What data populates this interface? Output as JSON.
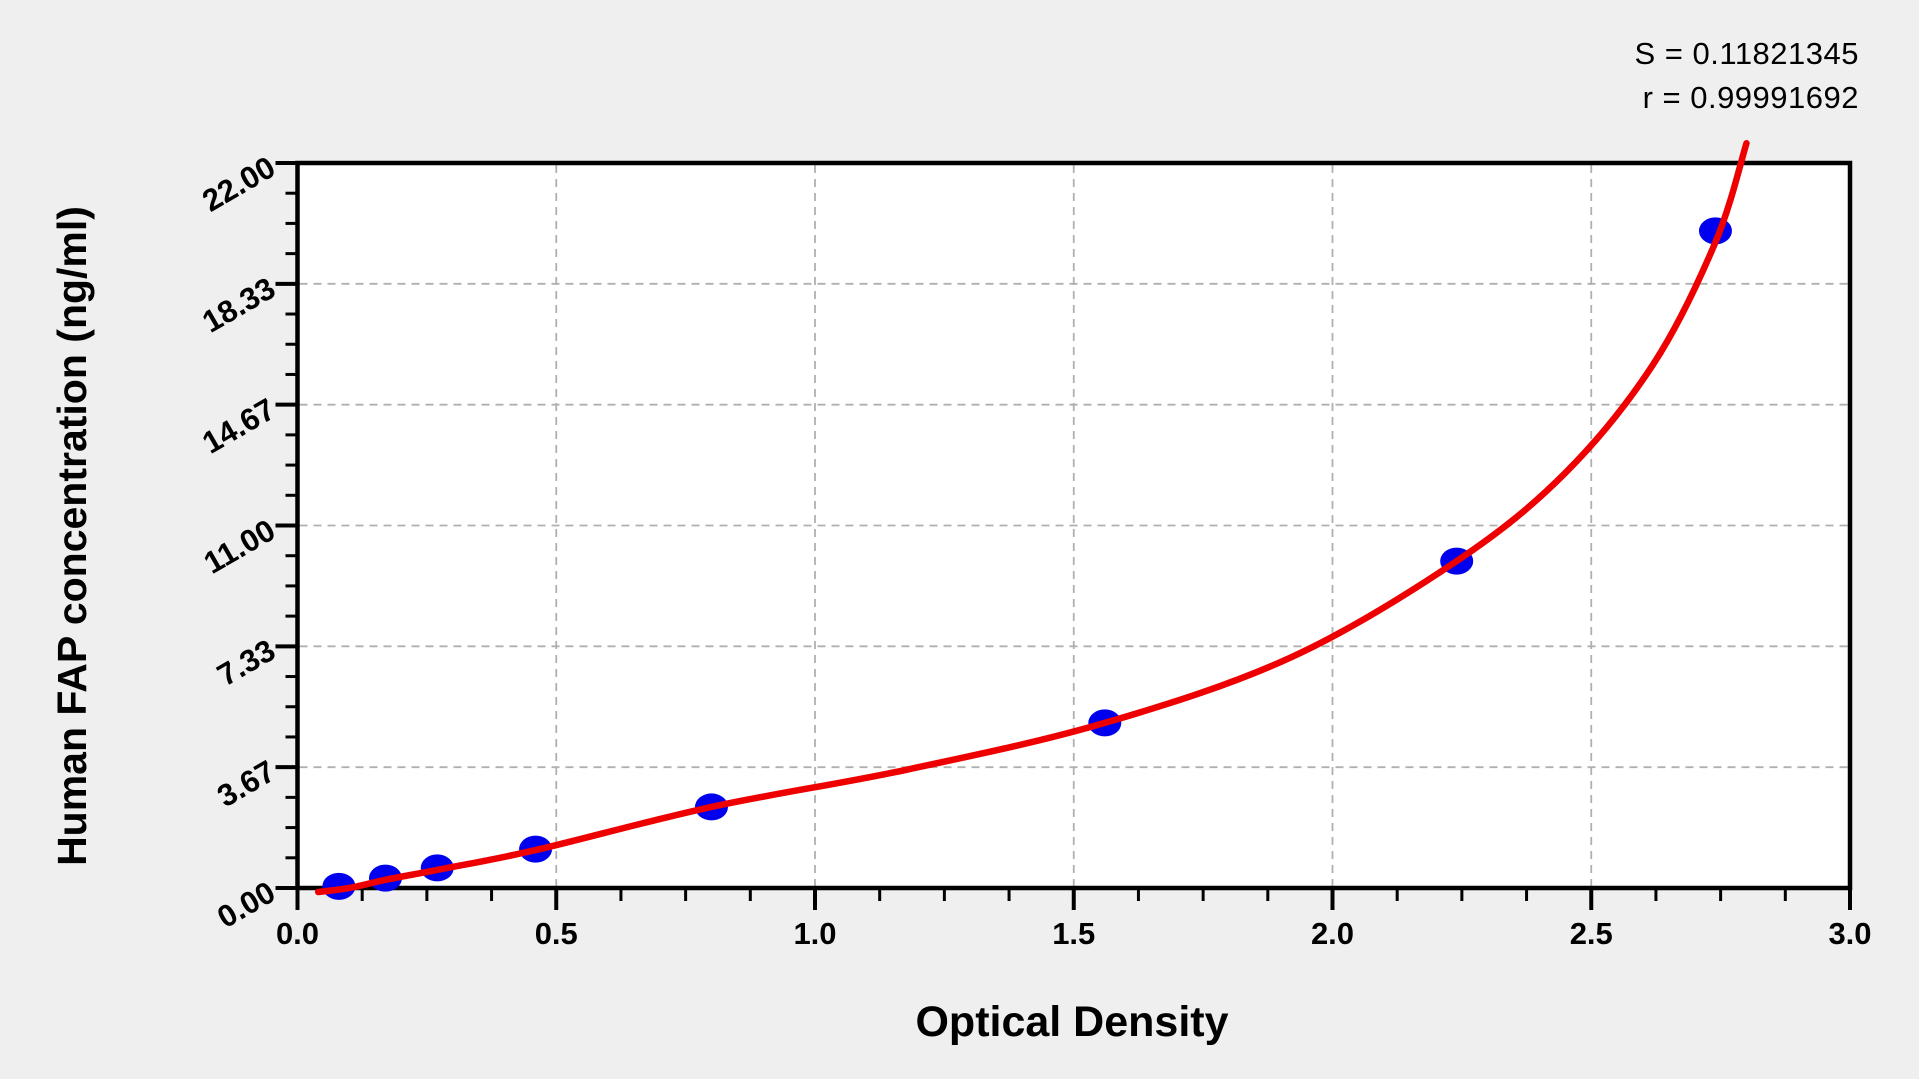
{
  "stats": {
    "s_text": "S = 0.11821345",
    "r_text": "r = 0.99991692",
    "s_value": 0.11821345,
    "r_value": 0.99991692
  },
  "chart_data": {
    "type": "scatter",
    "title": "",
    "xlabel": "Optical Density",
    "ylabel": "Human FAP concentration (ng/ml)",
    "xlim": [
      0,
      3.0
    ],
    "ylim": [
      0,
      22.0
    ],
    "x_major_ticks": [
      {
        "label": "0.0",
        "value": 0.0
      },
      {
        "label": "0.5",
        "value": 0.5
      },
      {
        "label": "1.0",
        "value": 1.0
      },
      {
        "label": "1.5",
        "value": 1.5
      },
      {
        "label": "2.0",
        "value": 2.0
      },
      {
        "label": "2.5",
        "value": 2.5
      },
      {
        "label": "3.0",
        "value": 3.0
      }
    ],
    "y_major_ticks": [
      {
        "label": "0.00",
        "value": 0.0
      },
      {
        "label": "3.67",
        "value": 3.6667
      },
      {
        "label": "7.33",
        "value": 7.3333
      },
      {
        "label": "11.00",
        "value": 11.0
      },
      {
        "label": "14.67",
        "value": 14.6667
      },
      {
        "label": "18.33",
        "value": 18.3333
      },
      {
        "label": "22.00",
        "value": 22.0
      }
    ],
    "x_minor_step": 0.125,
    "y_minor_divisions": 4,
    "grid": {
      "style": "dashed",
      "color": "#b0b0b0",
      "on_major_ticks": true
    },
    "legend": null,
    "points": [
      {
        "od": 0.08,
        "conc": 0.05
      },
      {
        "od": 0.17,
        "conc": 0.3
      },
      {
        "od": 0.27,
        "conc": 0.61
      },
      {
        "od": 0.46,
        "conc": 1.18
      },
      {
        "od": 0.8,
        "conc": 2.46
      },
      {
        "od": 1.56,
        "conc": 5.01
      },
      {
        "od": 2.24,
        "conc": 9.92
      },
      {
        "od": 2.74,
        "conc": 19.94
      }
    ],
    "curve_anchors": [
      [
        0.04,
        -0.12
      ],
      [
        0.1,
        0.0
      ],
      [
        0.17,
        0.25
      ],
      [
        0.27,
        0.55
      ],
      [
        0.46,
        1.15
      ],
      [
        0.8,
        2.46
      ],
      [
        1.18,
        3.6
      ],
      [
        1.56,
        5.01
      ],
      [
        1.92,
        7.0
      ],
      [
        2.24,
        9.92
      ],
      [
        2.45,
        12.6
      ],
      [
        2.62,
        15.9
      ],
      [
        2.74,
        19.6
      ],
      [
        2.8,
        22.6
      ]
    ],
    "colors": {
      "background": "#efefef",
      "plot_background": "#ffffff",
      "frame": "#000000",
      "grid": "#b0b0b0",
      "points": "#0000ee",
      "curve": "#ee0000",
      "text": "#000000"
    }
  }
}
